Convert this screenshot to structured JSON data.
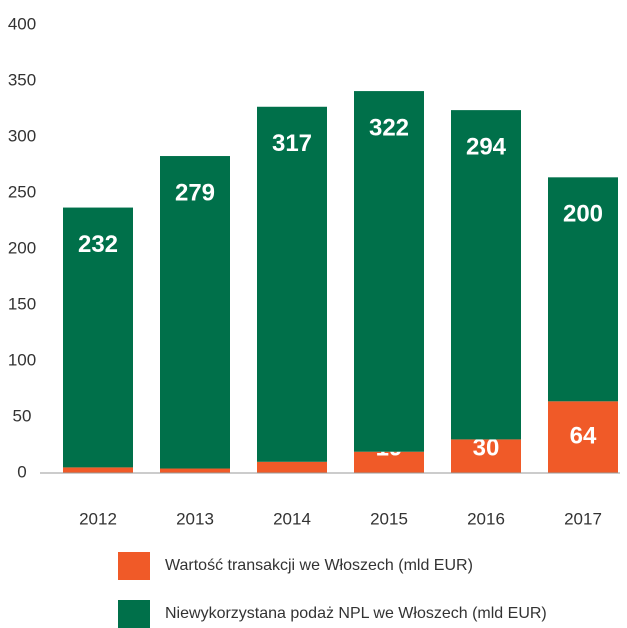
{
  "chart_data": {
    "type": "stacked_bar",
    "categories": [
      "2012",
      "2013",
      "2014",
      "2015",
      "2016",
      "2017"
    ],
    "series": [
      {
        "name": "Wartość transakcji we Włoszech (mld EUR)",
        "color": "#f05a28",
        "values": [
          5,
          4,
          10,
          19,
          30,
          64
        ]
      },
      {
        "name": "Niewykorzystana podaż NPL we Włoszech (mld EUR)",
        "color": "#00704a",
        "values": [
          232,
          279,
          317,
          322,
          294,
          200
        ]
      }
    ],
    "ylim": [
      0,
      400
    ],
    "yticks": [
      0,
      50,
      100,
      150,
      200,
      250,
      300,
      350,
      400
    ],
    "grid": false
  }
}
